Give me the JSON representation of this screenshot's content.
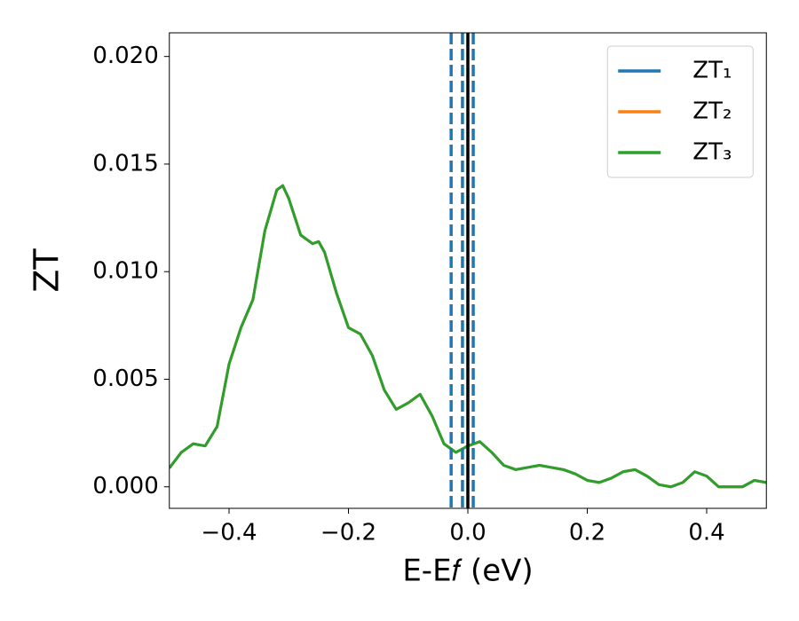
{
  "chart_data": {
    "type": "line",
    "xlabel": "E-E𝑓 (eV)",
    "ylabel": "ZT",
    "x": [
      -0.5,
      -0.48,
      -0.46,
      -0.44,
      -0.42,
      -0.4,
      -0.38,
      -0.36,
      -0.34,
      -0.32,
      -0.31,
      -0.3,
      -0.28,
      -0.26,
      -0.25,
      -0.24,
      -0.22,
      -0.2,
      -0.18,
      -0.16,
      -0.14,
      -0.12,
      -0.1,
      -0.08,
      -0.06,
      -0.04,
      -0.02,
      0.0,
      0.02,
      0.04,
      0.06,
      0.08,
      0.1,
      0.12,
      0.14,
      0.16,
      0.18,
      0.2,
      0.22,
      0.24,
      0.26,
      0.28,
      0.3,
      0.32,
      0.34,
      0.36,
      0.38,
      0.4,
      0.42,
      0.44,
      0.46,
      0.48,
      0.5
    ],
    "series": [
      {
        "name": "ZT₁",
        "color": "#1f77b4",
        "values": [
          0.00087,
          0.0016,
          0.002,
          0.0019,
          0.0028,
          0.0057,
          0.0074,
          0.0087,
          0.0119,
          0.0138,
          0.014,
          0.0134,
          0.0117,
          0.0113,
          0.0114,
          0.0109,
          0.009,
          0.0074,
          0.0071,
          0.0061,
          0.0045,
          0.0036,
          0.0039,
          0.0043,
          0.0033,
          0.002,
          0.0016,
          0.0019,
          0.0021,
          0.0016,
          0.001,
          0.0008,
          0.0009,
          0.001,
          0.0009,
          0.0008,
          0.0006,
          0.0003,
          0.0002,
          0.0004,
          0.0007,
          0.0008,
          0.0005,
          0.0001,
          0.0,
          0.0002,
          0.0007,
          0.0005,
          0.0,
          0.0,
          0.0,
          0.0003,
          0.0002
        ]
      },
      {
        "name": "ZT₂",
        "color": "#ff7f0e",
        "values": [
          0.00087,
          0.0016,
          0.002,
          0.0019,
          0.0028,
          0.0057,
          0.0074,
          0.0087,
          0.0119,
          0.0138,
          0.014,
          0.0134,
          0.0117,
          0.0113,
          0.0114,
          0.0109,
          0.009,
          0.0074,
          0.0071,
          0.0061,
          0.0045,
          0.0036,
          0.0039,
          0.0043,
          0.0033,
          0.002,
          0.0016,
          0.0019,
          0.0021,
          0.0016,
          0.001,
          0.0008,
          0.0009,
          0.001,
          0.0009,
          0.0008,
          0.0006,
          0.0003,
          0.0002,
          0.0004,
          0.0007,
          0.0008,
          0.0005,
          0.0001,
          0.0,
          0.0002,
          0.0007,
          0.0005,
          0.0,
          0.0,
          0.0,
          0.0003,
          0.0002
        ]
      },
      {
        "name": "ZT₃",
        "color": "#2ca02c",
        "values": [
          0.00087,
          0.0016,
          0.002,
          0.0019,
          0.0028,
          0.0057,
          0.0074,
          0.0087,
          0.0119,
          0.0138,
          0.014,
          0.0134,
          0.0117,
          0.0113,
          0.0114,
          0.0109,
          0.009,
          0.0074,
          0.0071,
          0.0061,
          0.0045,
          0.0036,
          0.0039,
          0.0043,
          0.0033,
          0.002,
          0.0016,
          0.0019,
          0.0021,
          0.0016,
          0.001,
          0.0008,
          0.0009,
          0.001,
          0.0009,
          0.0008,
          0.0006,
          0.0003,
          0.0002,
          0.0004,
          0.0007,
          0.0008,
          0.0005,
          0.0001,
          0.0,
          0.0002,
          0.0007,
          0.0005,
          0.0,
          0.0,
          0.0,
          0.0003,
          0.0002
        ]
      }
    ],
    "vlines": [
      {
        "x": -0.028,
        "color": "#1f77b4",
        "style": "dashed"
      },
      {
        "x": -0.009,
        "color": "#1f77b4",
        "style": "dashed"
      },
      {
        "x": 0.009,
        "color": "#1f77b4",
        "style": "dashed"
      },
      {
        "x": 0.0,
        "color": "#000000",
        "style": "solid"
      }
    ],
    "xlim": [
      -0.5,
      0.5
    ],
    "ylim": [
      -0.001,
      0.0211
    ],
    "xticks": [
      {
        "value": -0.4,
        "label": "−0.4"
      },
      {
        "value": -0.2,
        "label": "−0.2"
      },
      {
        "value": 0.0,
        "label": "0.0"
      },
      0.2,
      0.4
    ],
    "yticks": [
      {
        "value": 0.0,
        "label": "0.000"
      },
      {
        "value": 0.005,
        "label": "0.005"
      },
      {
        "value": 0.01,
        "label": "0.010"
      },
      {
        "value": 0.015,
        "label": "0.015"
      },
      {
        "value": 0.02,
        "label": "0.020"
      }
    ],
    "grid": false,
    "legend": "upper right"
  }
}
